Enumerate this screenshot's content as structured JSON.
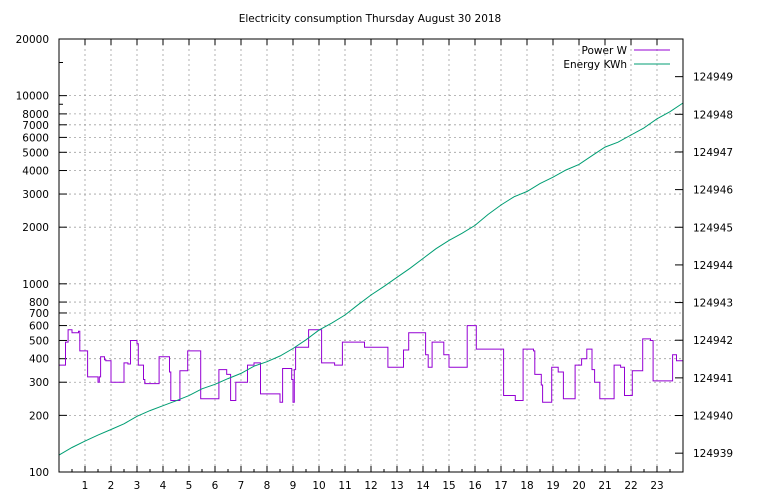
{
  "chart_data": {
    "type": "line",
    "title": "Electricity consumption Thursday August 30 2018",
    "xlabel": "",
    "ylabel": "",
    "xlim": [
      0,
      24
    ],
    "x_ticks": [
      1,
      2,
      3,
      4,
      5,
      6,
      7,
      8,
      9,
      10,
      11,
      12,
      13,
      14,
      15,
      16,
      17,
      18,
      19,
      20,
      21,
      22,
      23
    ],
    "y_left": {
      "scale": "log",
      "range": [
        100,
        20000
      ],
      "ticks": [
        100,
        200,
        300,
        400,
        500,
        600,
        700,
        800,
        1000,
        2000,
        3000,
        4000,
        5000,
        6000,
        7000,
        8000,
        10000,
        20000
      ]
    },
    "y_right": {
      "scale": "linear",
      "range": [
        124938.5,
        124950
      ],
      "ticks": [
        124939,
        124940,
        124941,
        124942,
        124943,
        124944,
        124945,
        124946,
        124947,
        124948,
        124949
      ]
    },
    "grid": true,
    "legend_position": "top-right",
    "series": [
      {
        "name": "Power W",
        "axis": "left",
        "color": "#9400d3",
        "step": true,
        "points": [
          [
            0.0,
            370
          ],
          [
            0.25,
            490
          ],
          [
            0.35,
            570
          ],
          [
            0.5,
            550
          ],
          [
            0.75,
            560
          ],
          [
            0.8,
            440
          ],
          [
            1.0,
            440
          ],
          [
            1.1,
            320
          ],
          [
            1.5,
            300
          ],
          [
            1.55,
            320
          ],
          [
            1.6,
            410
          ],
          [
            1.75,
            395
          ],
          [
            1.8,
            390
          ],
          [
            1.9,
            390
          ],
          [
            2.0,
            300
          ],
          [
            2.5,
            380
          ],
          [
            2.65,
            375
          ],
          [
            2.75,
            500
          ],
          [
            3.0,
            480
          ],
          [
            3.05,
            370
          ],
          [
            3.25,
            310
          ],
          [
            3.3,
            295
          ],
          [
            3.85,
            410
          ],
          [
            4.25,
            340
          ],
          [
            4.3,
            240
          ],
          [
            4.65,
            345
          ],
          [
            4.95,
            440
          ],
          [
            5.25,
            440
          ],
          [
            5.45,
            245
          ],
          [
            6.0,
            245
          ],
          [
            6.15,
            350
          ],
          [
            6.45,
            330
          ],
          [
            6.6,
            240
          ],
          [
            6.8,
            300
          ],
          [
            7.25,
            370
          ],
          [
            7.5,
            380
          ],
          [
            7.75,
            260
          ],
          [
            8.5,
            235
          ],
          [
            8.6,
            355
          ],
          [
            8.95,
            310
          ],
          [
            9.0,
            235
          ],
          [
            9.05,
            350
          ],
          [
            9.1,
            460
          ],
          [
            9.6,
            570
          ],
          [
            10.0,
            570
          ],
          [
            10.1,
            380
          ],
          [
            10.6,
            370
          ],
          [
            10.9,
            490
          ],
          [
            11.75,
            460
          ],
          [
            12.65,
            360
          ],
          [
            13.25,
            445
          ],
          [
            13.45,
            550
          ],
          [
            14.05,
            550
          ],
          [
            14.1,
            420
          ],
          [
            14.2,
            360
          ],
          [
            14.35,
            490
          ],
          [
            14.8,
            420
          ],
          [
            15.0,
            360
          ],
          [
            15.7,
            600
          ],
          [
            16.0,
            600
          ],
          [
            16.05,
            450
          ],
          [
            16.5,
            450
          ],
          [
            17.05,
            450
          ],
          [
            17.1,
            255
          ],
          [
            17.55,
            240
          ],
          [
            17.85,
            450
          ],
          [
            18.25,
            440
          ],
          [
            18.3,
            330
          ],
          [
            18.55,
            290
          ],
          [
            18.6,
            235
          ],
          [
            18.95,
            360
          ],
          [
            19.2,
            340
          ],
          [
            19.4,
            245
          ],
          [
            19.6,
            245
          ],
          [
            19.85,
            370
          ],
          [
            20.1,
            400
          ],
          [
            20.3,
            450
          ],
          [
            20.5,
            350
          ],
          [
            20.6,
            300
          ],
          [
            20.8,
            245
          ],
          [
            21.3,
            245
          ],
          [
            21.35,
            370
          ],
          [
            21.6,
            360
          ],
          [
            21.75,
            255
          ],
          [
            21.95,
            255
          ],
          [
            22.05,
            345
          ],
          [
            22.35,
            345
          ],
          [
            22.45,
            510
          ],
          [
            22.75,
            500
          ],
          [
            22.85,
            305
          ],
          [
            23.5,
            305
          ],
          [
            23.6,
            420
          ],
          [
            23.75,
            390
          ],
          [
            24.0,
            390
          ]
        ]
      },
      {
        "name": "Energy KWh",
        "axis": "right",
        "color": "#009e73",
        "step": false,
        "points": [
          [
            0.0,
            124938.95
          ],
          [
            0.5,
            124939.15
          ],
          [
            1.0,
            124939.32
          ],
          [
            1.5,
            124939.48
          ],
          [
            2.0,
            124939.63
          ],
          [
            2.5,
            124939.78
          ],
          [
            3.0,
            124939.98
          ],
          [
            3.5,
            124940.13
          ],
          [
            4.0,
            124940.26
          ],
          [
            4.5,
            124940.39
          ],
          [
            5.0,
            124940.53
          ],
          [
            5.5,
            124940.71
          ],
          [
            6.0,
            124940.83
          ],
          [
            6.5,
            124940.98
          ],
          [
            7.0,
            124941.12
          ],
          [
            7.5,
            124941.31
          ],
          [
            8.0,
            124941.43
          ],
          [
            8.5,
            124941.58
          ],
          [
            9.0,
            124941.78
          ],
          [
            9.5,
            124942.01
          ],
          [
            10.0,
            124942.27
          ],
          [
            10.5,
            124942.46
          ],
          [
            11.0,
            124942.67
          ],
          [
            11.5,
            124942.94
          ],
          [
            12.0,
            124943.2
          ],
          [
            12.5,
            124943.43
          ],
          [
            13.0,
            124943.67
          ],
          [
            13.5,
            124943.91
          ],
          [
            14.0,
            124944.17
          ],
          [
            14.5,
            124944.43
          ],
          [
            15.0,
            124944.65
          ],
          [
            15.5,
            124944.84
          ],
          [
            16.0,
            124945.05
          ],
          [
            16.5,
            124945.34
          ],
          [
            17.0,
            124945.59
          ],
          [
            17.5,
            124945.81
          ],
          [
            18.0,
            124945.95
          ],
          [
            18.5,
            124946.16
          ],
          [
            19.0,
            124946.33
          ],
          [
            19.5,
            124946.52
          ],
          [
            20.0,
            124946.67
          ],
          [
            20.5,
            124946.9
          ],
          [
            21.0,
            124947.13
          ],
          [
            21.5,
            124947.26
          ],
          [
            22.0,
            124947.45
          ],
          [
            22.5,
            124947.64
          ],
          [
            23.0,
            124947.88
          ],
          [
            23.5,
            124948.07
          ],
          [
            24.0,
            124948.3
          ]
        ]
      }
    ]
  }
}
